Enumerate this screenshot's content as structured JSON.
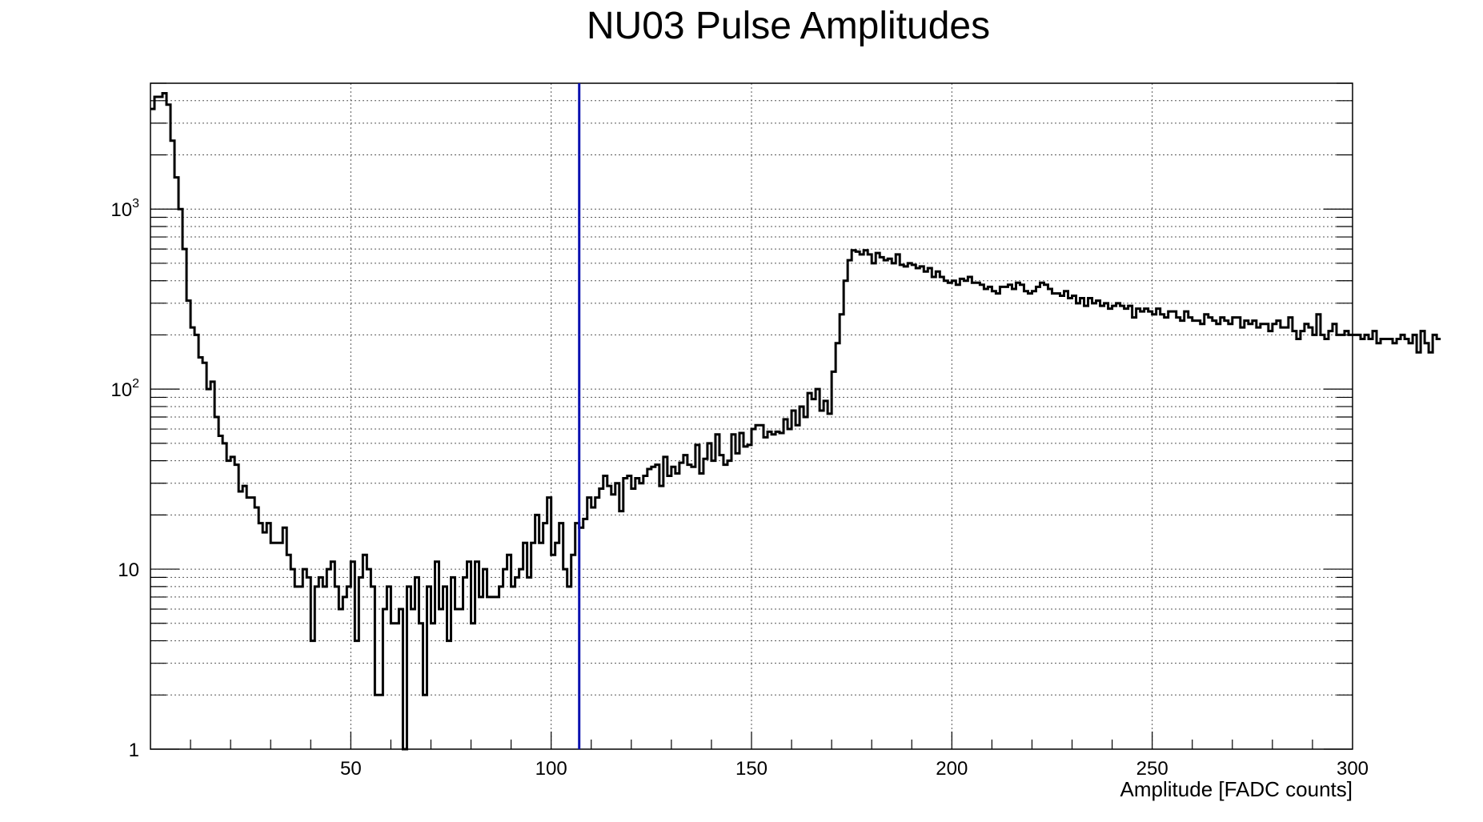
{
  "chart_data": {
    "type": "histogram",
    "title": "NU03 Pulse Amplitudes",
    "xlabel": "Amplitude [FADC counts]",
    "ylabel": "",
    "xlim": [
      0,
      300
    ],
    "ylim": [
      1,
      5000
    ],
    "y_scale": "log",
    "grid": true,
    "bin_width": 1,
    "x_ticks": [
      50,
      100,
      150,
      200,
      250,
      300
    ],
    "x_tick_labels": [
      "50",
      "100",
      "150",
      "200",
      "250",
      "300"
    ],
    "y_tick_labels": [
      {
        "value": 1,
        "base": "1",
        "exp": ""
      },
      {
        "value": 10,
        "base": "10",
        "exp": ""
      },
      {
        "value": 100,
        "base": "10",
        "exp": "2"
      },
      {
        "value": 1000,
        "base": "10",
        "exp": "3"
      }
    ],
    "reference_line": {
      "x": 107,
      "color": "#0a10b0"
    },
    "line_color": "#000000",
    "x_start": 0,
    "values": [
      3600,
      4200,
      4200,
      4400,
      3800,
      2400,
      1500,
      1000,
      600,
      310,
      220,
      200,
      150,
      140,
      100,
      110,
      70,
      55,
      50,
      40,
      42,
      38,
      27,
      29,
      25,
      25,
      22,
      18,
      16,
      18,
      14,
      14,
      14,
      17,
      12,
      10,
      8,
      8,
      10,
      9,
      4,
      8,
      9,
      8,
      10,
      11,
      8,
      6,
      7,
      8,
      11,
      4,
      9,
      12,
      10,
      8,
      2,
      2,
      6,
      8,
      5,
      5,
      6,
      1,
      8,
      6,
      9,
      5,
      2,
      8,
      5,
      11,
      6,
      8,
      4,
      9,
      6,
      6,
      9,
      11,
      5,
      11,
      7,
      10,
      7,
      7,
      7,
      8,
      10,
      12,
      8,
      9,
      10,
      14,
      9,
      14,
      20,
      14,
      18,
      25,
      12,
      14,
      18,
      10,
      8,
      12,
      18,
      17,
      19,
      25,
      22,
      25,
      28,
      33,
      29,
      26,
      30,
      21,
      32,
      33,
      28,
      32,
      30,
      33,
      36,
      37,
      38,
      29,
      42,
      33,
      37,
      34,
      39,
      43,
      38,
      37,
      49,
      34,
      41,
      50,
      40,
      56,
      43,
      38,
      40,
      56,
      44,
      57,
      48,
      49,
      60,
      63,
      63,
      54,
      58,
      56,
      58,
      57,
      68,
      60,
      76,
      63,
      80,
      70,
      95,
      88,
      100,
      76,
      86,
      73,
      125,
      180,
      260,
      400,
      520,
      590,
      580,
      560,
      590,
      560,
      500,
      570,
      540,
      520,
      530,
      500,
      560,
      490,
      480,
      500,
      490,
      470,
      480,
      450,
      470,
      420,
      450,
      420,
      400,
      390,
      400,
      380,
      410,
      400,
      420,
      390,
      390,
      380,
      360,
      370,
      350,
      340,
      370,
      370,
      380,
      360,
      390,
      380,
      350,
      340,
      350,
      370,
      390,
      380,
      360,
      340,
      340,
      330,
      350,
      320,
      330,
      300,
      320,
      290,
      320,
      300,
      310,
      290,
      300,
      280,
      290,
      300,
      290,
      280,
      290,
      250,
      280,
      270,
      280,
      270,
      260,
      280,
      260,
      250,
      270,
      270,
      250,
      240,
      270,
      250,
      240,
      240,
      230,
      260,
      250,
      240,
      230,
      250,
      240,
      230,
      250,
      250,
      220,
      240,
      230,
      240,
      220,
      230,
      230,
      210,
      230,
      240,
      220,
      220,
      250,
      210,
      190,
      210,
      230,
      220,
      200,
      260,
      200,
      190,
      210,
      230,
      200,
      200,
      210,
      200,
      200,
      200,
      190,
      200,
      190,
      210,
      180,
      190,
      190,
      190,
      180,
      190,
      200,
      190,
      180,
      200,
      160,
      210,
      180,
      160,
      200,
      190
    ]
  }
}
